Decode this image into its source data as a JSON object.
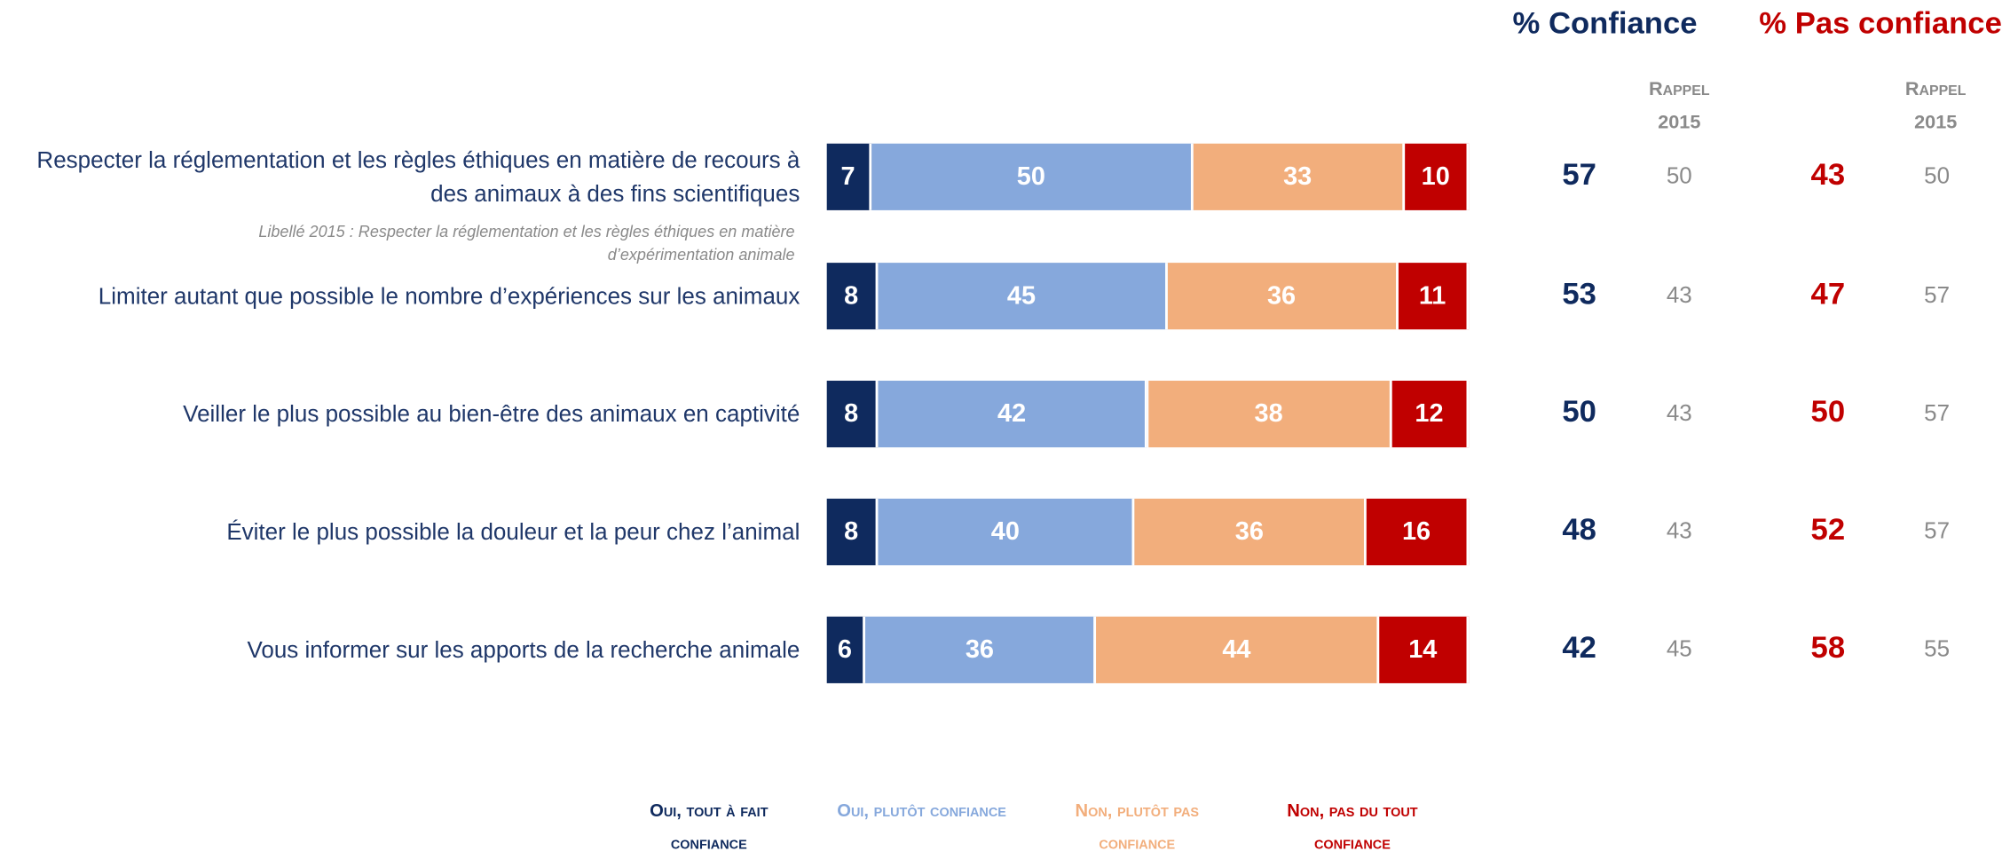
{
  "chart_data": {
    "type": "bar",
    "orientation": "horizontal",
    "stacked": true,
    "categories": [
      "Respecter la réglementation et les règles éthiques en matière de recours à des animaux à des fins scientifiques",
      "Limiter autant que possible le nombre d’expériences sur les animaux",
      "Veiller le plus possible au bien-être des animaux en captivité",
      "Éviter le plus possible la douleur et la peur chez l’animal",
      "Vous informer sur les apports de la recherche animale"
    ],
    "note": "Libellé 2015 : Respecter la réglementation et les règles éthiques en matière d’expérimentation animale",
    "xlim": [
      0,
      100
    ],
    "series": [
      {
        "name": "Oui, tout à fait confiance",
        "color": "#0f2a5e",
        "values": [
          7,
          8,
          8,
          8,
          6
        ]
      },
      {
        "name": "Oui, plutôt confiance",
        "color": "#86a8dc",
        "values": [
          50,
          45,
          42,
          40,
          36
        ]
      },
      {
        "name": "Non, plutôt pas confiance",
        "color": "#f2ae7c",
        "values": [
          33,
          36,
          38,
          36,
          44
        ]
      },
      {
        "name": "Non, pas du tout confiance",
        "color": "#c00000",
        "values": [
          10,
          11,
          12,
          16,
          14
        ]
      }
    ],
    "summary": [
      {
        "name": "% Confiance",
        "color": "#0f2a5e",
        "values": [
          57,
          53,
          50,
          48,
          42
        ],
        "recall_label": "Rappel 2015",
        "recall_values": [
          50,
          43,
          43,
          43,
          45
        ]
      },
      {
        "name": "% Pas confiance",
        "color": "#c00000",
        "values": [
          43,
          47,
          50,
          52,
          58
        ],
        "recall_label": "Rappel 2015",
        "recall_values": [
          50,
          57,
          57,
          57,
          55
        ]
      }
    ]
  }
}
